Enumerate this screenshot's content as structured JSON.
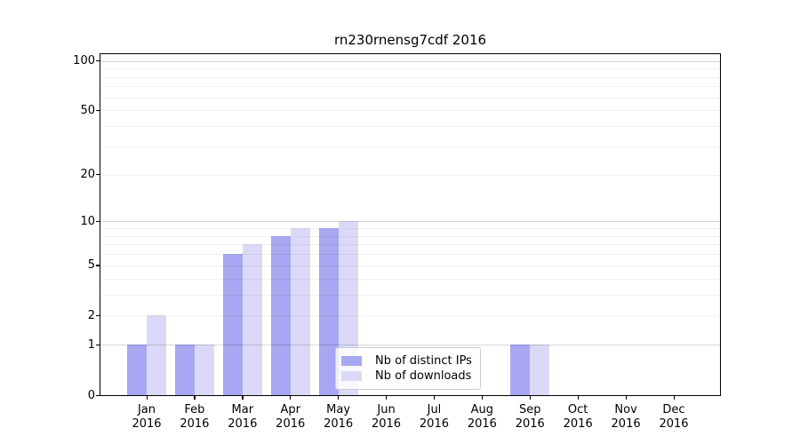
{
  "title": "rn230rnensg7cdf 2016",
  "chart_data": {
    "type": "bar",
    "title": "rn230rnensg7cdf 2016",
    "categories": [
      "Jan",
      "Feb",
      "Mar",
      "Apr",
      "May",
      "Jun",
      "Jul",
      "Aug",
      "Sep",
      "Oct",
      "Nov",
      "Dec"
    ],
    "category_year": "2016",
    "series": [
      {
        "name": "Nb of distinct IPs",
        "color": "#a7a7f2",
        "values": [
          1,
          1,
          6,
          8,
          9,
          0,
          0,
          0,
          1,
          0,
          0,
          0
        ]
      },
      {
        "name": "Nb of downloads",
        "color": "#dadaf8",
        "values": [
          2,
          1,
          7,
          9,
          10,
          0,
          0,
          0,
          1,
          0,
          0,
          0
        ]
      }
    ],
    "y_scale": "log1p",
    "ylim": [
      0,
      110
    ],
    "y_ticks": [
      0,
      1,
      2,
      5,
      10,
      20,
      50,
      100
    ],
    "y_major_gridlines": [
      1,
      10,
      100
    ],
    "y_minor_gridlines": [
      2,
      3,
      4,
      5,
      6,
      7,
      8,
      9,
      20,
      30,
      40,
      50,
      60,
      70,
      80,
      90
    ],
    "grid": true,
    "legend_position": "lower-center-inside"
  },
  "colors": {
    "background": "#ffffff",
    "axis": "#000000",
    "bar_distinct_ips": "#a7a7f2",
    "bar_downloads": "#dadaf8",
    "major_grid": "#d6d6d6",
    "minor_grid": "#f1f1f1"
  }
}
